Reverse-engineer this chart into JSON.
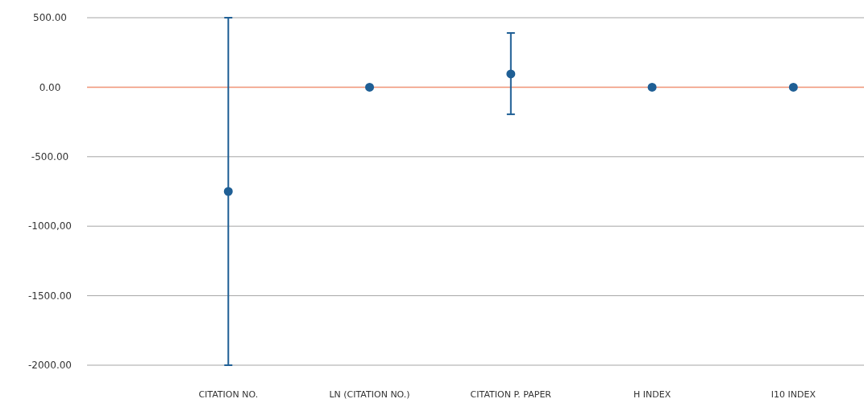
{
  "chart_data": {
    "type": "scatter",
    "categories": [
      "CITATION NO.",
      "LN (CITATION NO.)",
      "CITATION P. PAPER",
      "H INDEX",
      "I10 INDEX"
    ],
    "values": [
      -750,
      0,
      95,
      0,
      0
    ],
    "errors": [
      [
        -2000,
        500
      ],
      null,
      [
        -195,
        390
      ],
      null,
      null
    ],
    "color": "#1f5f95",
    "marker": "circle",
    "ylim": [
      -2000,
      500
    ],
    "yticks": [
      {
        "value": 500,
        "label": "500.00"
      },
      {
        "value": 0,
        "label": "0.00"
      },
      {
        "value": -500,
        "label": "-500.00"
      },
      {
        "value": -1000,
        "label": "-1000,00"
      },
      {
        "value": -1500,
        "label": "-1500.00"
      },
      {
        "value": -2000,
        "label": "-2000.00"
      }
    ],
    "grid": "y",
    "ref_lines": [
      {
        "axis": "y",
        "value": 0,
        "color": "#f2967a"
      }
    ]
  }
}
